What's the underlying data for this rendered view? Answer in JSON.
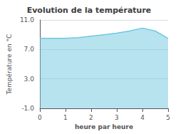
{
  "chart_data": {
    "type": "area",
    "title": "Evolution de la température",
    "x_label": "heure par heure",
    "y_label": "Température en °C",
    "x": [
      0,
      0.5,
      1.0,
      1.5,
      2.0,
      2.5,
      3.0,
      3.5,
      4.0,
      4.5,
      5.0
    ],
    "values": [
      8.5,
      8.5,
      8.5,
      8.6,
      8.8,
      9.0,
      9.2,
      9.5,
      9.9,
      9.5,
      8.5
    ],
    "color": "#6fc8e0",
    "xlim": [
      0,
      5
    ],
    "xticks": [
      0,
      1,
      2,
      3,
      4,
      5
    ],
    "ylim": [
      -1.0,
      11.0
    ],
    "yticks": [
      {
        "value": -1.0,
        "label": "-1.0"
      },
      {
        "value": 3.0,
        "label": "3.0"
      },
      {
        "value": 7.0,
        "label": "7.0"
      },
      {
        "value": 11.0,
        "label": "11.0"
      }
    ],
    "grid": true
  }
}
